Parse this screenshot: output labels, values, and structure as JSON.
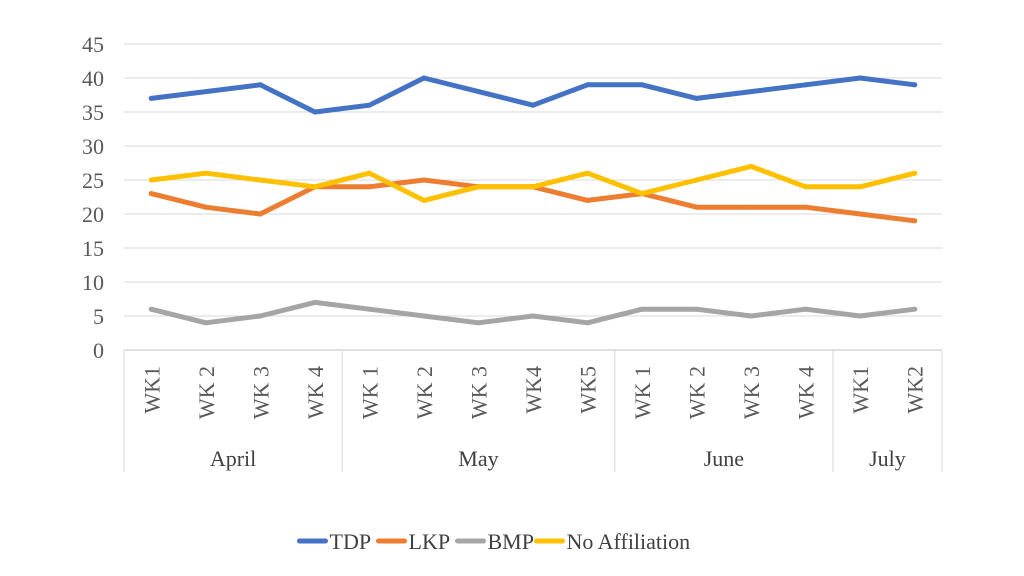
{
  "chart_data": {
    "type": "line",
    "title": "",
    "xlabel": "",
    "ylabel": "",
    "ylim": [
      0,
      45
    ],
    "yticks": [
      0,
      5,
      10,
      15,
      20,
      25,
      30,
      35,
      40,
      45
    ],
    "grid": true,
    "legend_position": "bottom",
    "categories": [
      "WK1",
      "WK 2",
      "WK 3",
      "WK 4",
      "WK 1",
      "WK 2",
      "WK 3",
      "WK4",
      "WK5",
      "WK 1",
      "WK 2",
      "WK 3",
      "WK 4",
      "WK1",
      "WK2"
    ],
    "groups": [
      {
        "label": "April",
        "count": 4
      },
      {
        "label": "May",
        "count": 5
      },
      {
        "label": "June",
        "count": 4
      },
      {
        "label": "July",
        "count": 2
      }
    ],
    "series": [
      {
        "name": "TDP",
        "color": "#4472C4",
        "values": [
          37,
          38,
          39,
          35,
          36,
          40,
          38,
          36,
          39,
          39,
          37,
          38,
          39,
          40,
          39
        ]
      },
      {
        "name": "LKP",
        "color": "#ED7D31",
        "values": [
          23,
          21,
          20,
          24,
          24,
          25,
          24,
          24,
          22,
          23,
          21,
          21,
          21,
          20,
          19
        ]
      },
      {
        "name": "BMP",
        "color": "#A5A5A5",
        "values": [
          6,
          4,
          5,
          7,
          6,
          5,
          4,
          5,
          4,
          6,
          6,
          5,
          6,
          5,
          6
        ]
      },
      {
        "name": "No Affiliation",
        "color": "#FFC000",
        "values": [
          25,
          26,
          25,
          24,
          26,
          22,
          24,
          24,
          26,
          23,
          25,
          27,
          24,
          24,
          26
        ]
      }
    ]
  }
}
